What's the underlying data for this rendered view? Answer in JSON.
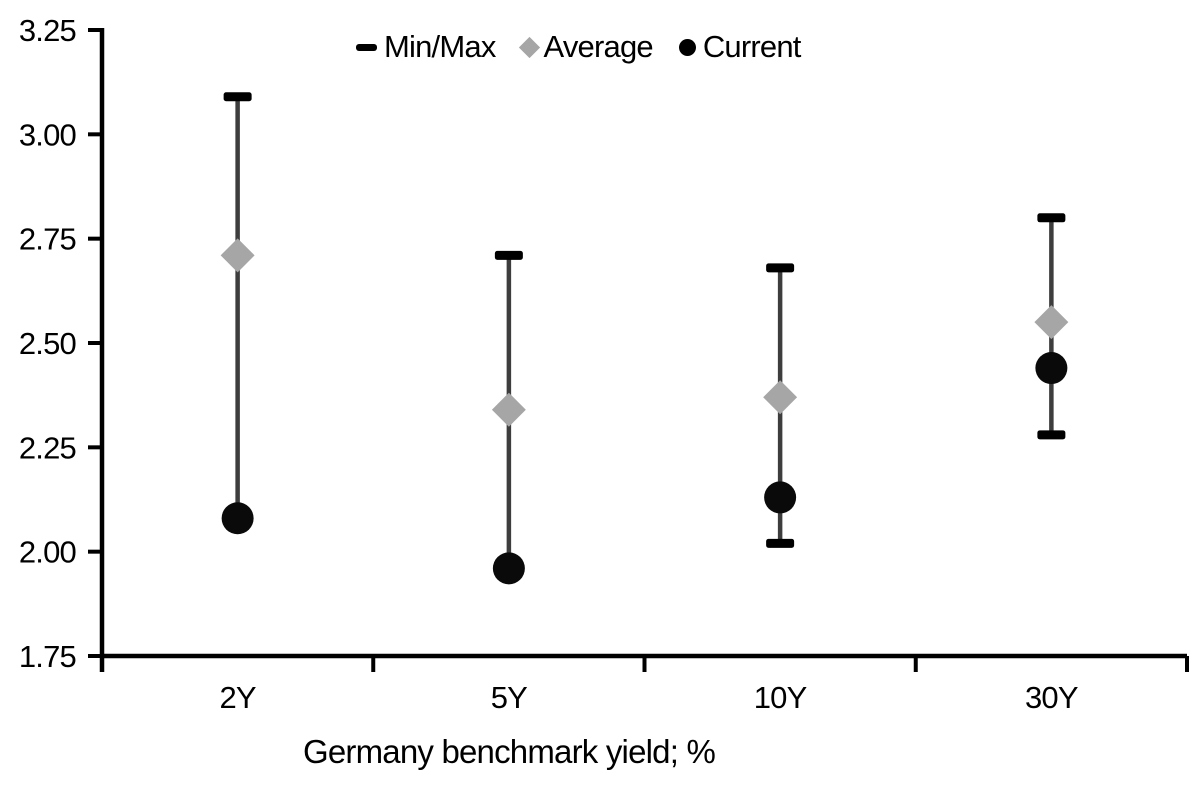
{
  "chart_data": {
    "type": "scatter",
    "title": "",
    "xlabel": "Germany benchmark yield; %",
    "ylabel": "",
    "categories": [
      "2Y",
      "5Y",
      "10Y",
      "30Y"
    ],
    "ylim": [
      1.75,
      3.25
    ],
    "y_tick_step": 0.25,
    "y_tick_labels": [
      "3.25",
      "3.00",
      "2.75",
      "2.50",
      "2.25",
      "2.00",
      "1.75"
    ],
    "grid": false,
    "legend_position": "top-center-inside",
    "legend": [
      {
        "label": "Min/Max",
        "marker": "dash",
        "color": "#000000"
      },
      {
        "label": "Average",
        "marker": "diamond",
        "color": "#a6a6a6"
      },
      {
        "label": "Current",
        "marker": "circle",
        "color": "#000000"
      }
    ],
    "series": [
      {
        "name": "Min",
        "values": [
          2.08,
          1.96,
          2.02,
          2.28
        ]
      },
      {
        "name": "Max",
        "values": [
          3.09,
          2.71,
          2.68,
          2.8
        ]
      },
      {
        "name": "Average",
        "values": [
          2.71,
          2.34,
          2.37,
          2.55
        ]
      },
      {
        "name": "Current",
        "values": [
          2.08,
          1.96,
          2.13,
          2.44
        ]
      }
    ],
    "colors": {
      "axis": "#000000",
      "whisker_line": "#3d3d3d",
      "cap": "#000000",
      "average": "#a6a6a6",
      "current": "#0a0a0a"
    }
  }
}
